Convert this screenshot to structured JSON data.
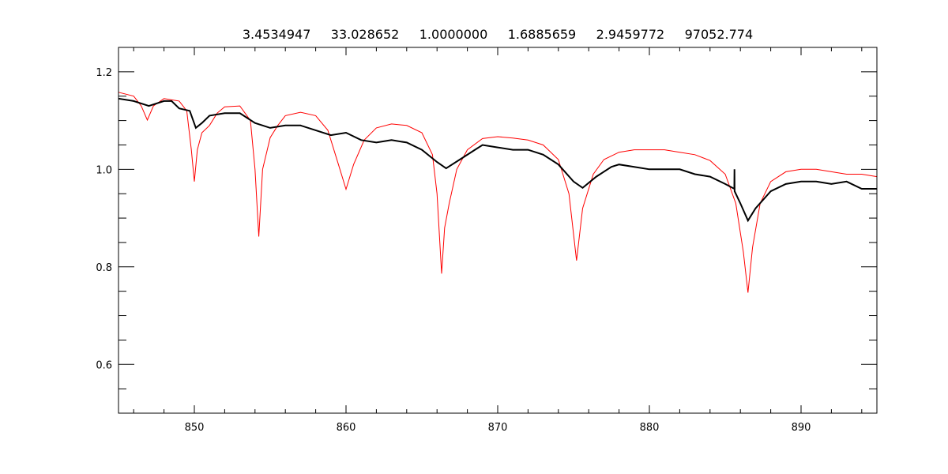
{
  "chart_data": {
    "type": "line",
    "title": "3.4534947     33.028652     1.0000000     1.6885659     2.9459772     97052.774",
    "xlabel": "",
    "ylabel": "",
    "xlim": [
      845,
      895
    ],
    "ylim": [
      0.5,
      1.25
    ],
    "xticks": [
      850,
      860,
      870,
      880,
      890
    ],
    "xtick_labels": [
      "850",
      "860",
      "870",
      "880",
      "890"
    ],
    "x_minor_step": 2,
    "yticks": [
      0.6,
      0.8,
      1.0,
      1.2
    ],
    "ytick_labels": [
      "0.6",
      "0.8",
      "1.0",
      "1.2"
    ],
    "y_minor_step": 0.05,
    "grid": false,
    "legend": "none",
    "series": [
      {
        "color": "#ff0000",
        "points": [
          [
            845,
            1.158
          ],
          [
            846,
            1.15
          ],
          [
            846.5,
            1.13
          ],
          [
            846.9,
            1.101
          ],
          [
            847.3,
            1.13
          ],
          [
            848,
            1.145
          ],
          [
            849,
            1.14
          ],
          [
            849.5,
            1.12
          ],
          [
            849.8,
            1.04
          ],
          [
            850.0,
            0.975
          ],
          [
            850.2,
            1.04
          ],
          [
            850.5,
            1.075
          ],
          [
            851,
            1.09
          ],
          [
            851.5,
            1.115
          ],
          [
            852,
            1.128
          ],
          [
            853,
            1.13
          ],
          [
            853.7,
            1.1
          ],
          [
            854.0,
            1.0
          ],
          [
            854.25,
            0.862
          ],
          [
            854.5,
            1.0
          ],
          [
            855,
            1.065
          ],
          [
            855.5,
            1.09
          ],
          [
            856,
            1.11
          ],
          [
            857,
            1.117
          ],
          [
            858,
            1.11
          ],
          [
            858.8,
            1.08
          ],
          [
            859.5,
            1.01
          ],
          [
            860.0,
            0.959
          ],
          [
            860.5,
            1.01
          ],
          [
            861.2,
            1.06
          ],
          [
            862,
            1.085
          ],
          [
            863,
            1.093
          ],
          [
            864,
            1.09
          ],
          [
            865,
            1.075
          ],
          [
            865.7,
            1.03
          ],
          [
            866.0,
            0.95
          ],
          [
            866.3,
            0.786
          ],
          [
            866.5,
            0.88
          ],
          [
            866.8,
            0.93
          ],
          [
            867.3,
            1.0
          ],
          [
            868,
            1.04
          ],
          [
            869,
            1.063
          ],
          [
            870,
            1.067
          ],
          [
            871,
            1.064
          ],
          [
            872,
            1.06
          ],
          [
            873,
            1.05
          ],
          [
            874,
            1.02
          ],
          [
            874.7,
            0.95
          ],
          [
            875.2,
            0.813
          ],
          [
            875.6,
            0.92
          ],
          [
            876.3,
            0.99
          ],
          [
            877,
            1.02
          ],
          [
            878,
            1.035
          ],
          [
            879,
            1.04
          ],
          [
            880,
            1.04
          ],
          [
            881,
            1.04
          ],
          [
            882,
            1.035
          ],
          [
            883,
            1.03
          ],
          [
            884,
            1.018
          ],
          [
            885,
            0.99
          ],
          [
            885.7,
            0.93
          ],
          [
            886.2,
            0.83
          ],
          [
            886.5,
            0.747
          ],
          [
            886.8,
            0.84
          ],
          [
            887.3,
            0.93
          ],
          [
            888,
            0.975
          ],
          [
            889,
            0.995
          ],
          [
            890,
            1.0
          ],
          [
            891,
            1.0
          ],
          [
            892,
            0.995
          ],
          [
            893,
            0.99
          ],
          [
            894,
            0.99
          ],
          [
            895,
            0.985
          ]
        ]
      },
      {
        "color": "#000000",
        "points": [
          [
            845,
            1.145
          ],
          [
            846,
            1.14
          ],
          [
            847,
            1.13
          ],
          [
            848,
            1.14
          ],
          [
            848.5,
            1.14
          ],
          [
            849,
            1.125
          ],
          [
            849.7,
            1.12
          ],
          [
            850.1,
            1.085
          ],
          [
            850.5,
            1.095
          ],
          [
            851,
            1.11
          ],
          [
            852,
            1.115
          ],
          [
            853,
            1.115
          ],
          [
            854,
            1.095
          ],
          [
            855,
            1.085
          ],
          [
            856,
            1.09
          ],
          [
            857,
            1.09
          ],
          [
            858,
            1.08
          ],
          [
            859,
            1.07
          ],
          [
            860,
            1.075
          ],
          [
            861,
            1.06
          ],
          [
            862,
            1.055
          ],
          [
            863,
            1.06
          ],
          [
            864,
            1.055
          ],
          [
            865,
            1.04
          ],
          [
            866,
            1.015
          ],
          [
            866.6,
            1.002
          ],
          [
            867.5,
            1.02
          ],
          [
            868.5,
            1.04
          ],
          [
            869,
            1.05
          ],
          [
            870,
            1.045
          ],
          [
            871,
            1.04
          ],
          [
            872,
            1.04
          ],
          [
            873,
            1.03
          ],
          [
            874,
            1.01
          ],
          [
            875,
            0.975
          ],
          [
            875.6,
            0.962
          ],
          [
            876.5,
            0.985
          ],
          [
            877.5,
            1.005
          ],
          [
            878,
            1.01
          ],
          [
            879,
            1.005
          ],
          [
            880,
            1.0
          ],
          [
            881,
            1.0
          ],
          [
            882,
            1.0
          ],
          [
            883,
            0.99
          ],
          [
            884,
            0.985
          ],
          [
            885,
            0.97
          ],
          [
            885.6,
            0.96
          ],
          [
            885.61,
            1.0
          ],
          [
            885.62,
            0.955
          ],
          [
            886,
            0.93
          ],
          [
            886.5,
            0.895
          ],
          [
            887,
            0.92
          ],
          [
            888,
            0.955
          ],
          [
            889,
            0.97
          ],
          [
            890,
            0.975
          ],
          [
            891,
            0.975
          ],
          [
            892,
            0.97
          ],
          [
            893,
            0.975
          ],
          [
            894,
            0.96
          ],
          [
            895,
            0.96
          ]
        ]
      }
    ]
  }
}
